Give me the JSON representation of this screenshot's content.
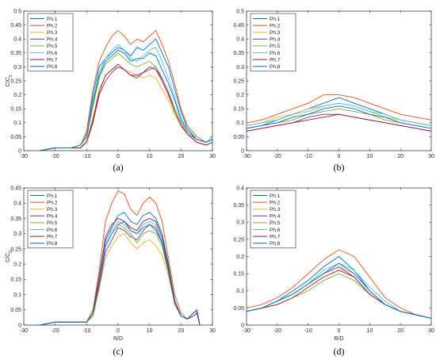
{
  "chart_data": [
    {
      "type": "line",
      "caption": "(a)",
      "xlabel": "",
      "ylabel": "C/C0",
      "xlim": [
        -30,
        30
      ],
      "ylim": [
        0,
        0.5
      ],
      "xticks": [
        -30,
        -20,
        -10,
        0,
        10,
        20,
        30
      ],
      "yticks": [
        0,
        0.05,
        0.1,
        0.15,
        0.2,
        0.25,
        0.3,
        0.35,
        0.4,
        0.45,
        0.5
      ],
      "legend_position": "top-left",
      "grid": false,
      "x": [
        -25,
        -20,
        -15,
        -12,
        -10,
        -8,
        -6,
        -4,
        -2,
        0,
        2,
        4,
        6,
        8,
        10,
        12,
        14,
        16,
        18,
        20,
        22,
        25,
        28,
        30
      ],
      "series": [
        {
          "name": "Ph.1",
          "color": "#0072BD",
          "values": [
            0.0,
            0.01,
            0.01,
            0.02,
            0.06,
            0.2,
            0.3,
            0.33,
            0.35,
            0.37,
            0.36,
            0.34,
            0.37,
            0.36,
            0.38,
            0.4,
            0.35,
            0.3,
            0.22,
            0.14,
            0.08,
            0.04,
            0.03,
            0.05
          ]
        },
        {
          "name": "Ph.2",
          "color": "#D95319",
          "values": [
            0.0,
            0.01,
            0.01,
            0.02,
            0.07,
            0.22,
            0.32,
            0.37,
            0.41,
            0.43,
            0.41,
            0.38,
            0.4,
            0.39,
            0.41,
            0.43,
            0.38,
            0.32,
            0.24,
            0.15,
            0.09,
            0.05,
            0.03,
            0.04
          ]
        },
        {
          "name": "Ph.3",
          "color": "#EDB120",
          "values": [
            0.0,
            0.01,
            0.01,
            0.01,
            0.04,
            0.12,
            0.22,
            0.27,
            0.29,
            0.3,
            0.29,
            0.28,
            0.27,
            0.26,
            0.27,
            0.26,
            0.22,
            0.18,
            0.13,
            0.09,
            0.06,
            0.03,
            0.02,
            0.03
          ]
        },
        {
          "name": "Ph.4",
          "color": "#7E2F8E",
          "values": [
            0.0,
            0.01,
            0.01,
            0.01,
            0.03,
            0.1,
            0.2,
            0.25,
            0.28,
            0.3,
            0.29,
            0.27,
            0.26,
            0.28,
            0.29,
            0.3,
            0.26,
            0.21,
            0.15,
            0.1,
            0.06,
            0.03,
            0.02,
            0.03
          ]
        },
        {
          "name": "Ph.5",
          "color": "#77AC30",
          "values": [
            0.0,
            0.01,
            0.01,
            0.02,
            0.05,
            0.16,
            0.26,
            0.31,
            0.33,
            0.35,
            0.33,
            0.31,
            0.3,
            0.31,
            0.32,
            0.3,
            0.25,
            0.2,
            0.15,
            0.1,
            0.06,
            0.04,
            0.03,
            0.04
          ]
        },
        {
          "name": "Ph.6",
          "color": "#4DBEEE",
          "values": [
            0.0,
            0.01,
            0.01,
            0.02,
            0.06,
            0.18,
            0.28,
            0.33,
            0.36,
            0.38,
            0.36,
            0.33,
            0.32,
            0.34,
            0.36,
            0.37,
            0.32,
            0.26,
            0.19,
            0.12,
            0.07,
            0.04,
            0.03,
            0.05
          ]
        },
        {
          "name": "Ph.7",
          "color": "#A2142F",
          "values": [
            0.0,
            0.01,
            0.01,
            0.01,
            0.03,
            0.11,
            0.21,
            0.27,
            0.29,
            0.31,
            0.29,
            0.27,
            0.27,
            0.28,
            0.3,
            0.29,
            0.25,
            0.2,
            0.14,
            0.09,
            0.06,
            0.03,
            0.02,
            0.03
          ]
        },
        {
          "name": "Ph.8",
          "color": "#0072BD",
          "values": [
            0.0,
            0.01,
            0.01,
            0.02,
            0.05,
            0.17,
            0.27,
            0.32,
            0.34,
            0.36,
            0.35,
            0.32,
            0.33,
            0.33,
            0.35,
            0.34,
            0.29,
            0.24,
            0.18,
            0.11,
            0.07,
            0.04,
            0.03,
            0.04
          ]
        }
      ]
    },
    {
      "type": "line",
      "caption": "(b)",
      "xlabel": "",
      "ylabel": "",
      "xlim": [
        -30,
        30
      ],
      "ylim": [
        0,
        0.5
      ],
      "xticks": [
        -30,
        -20,
        -10,
        0,
        10,
        20,
        30
      ],
      "yticks": [
        0,
        0.05,
        0.1,
        0.15,
        0.2,
        0.25,
        0.3,
        0.35,
        0.4,
        0.45,
        0.5
      ],
      "legend_position": "top-left",
      "grid": false,
      "x": [
        -30,
        -25,
        -20,
        -15,
        -10,
        -5,
        0,
        5,
        10,
        15,
        20,
        25,
        30
      ],
      "series": [
        {
          "name": "Ph.1",
          "color": "#0072BD",
          "values": [
            0.08,
            0.09,
            0.11,
            0.13,
            0.15,
            0.17,
            0.19,
            0.17,
            0.15,
            0.13,
            0.11,
            0.1,
            0.09
          ]
        },
        {
          "name": "Ph.2",
          "color": "#D95319",
          "values": [
            0.1,
            0.11,
            0.13,
            0.15,
            0.17,
            0.2,
            0.2,
            0.19,
            0.17,
            0.15,
            0.13,
            0.12,
            0.11
          ]
        },
        {
          "name": "Ph.3",
          "color": "#EDB120",
          "values": [
            0.09,
            0.1,
            0.12,
            0.13,
            0.15,
            0.16,
            0.17,
            0.16,
            0.14,
            0.12,
            0.11,
            0.1,
            0.09
          ]
        },
        {
          "name": "Ph.4",
          "color": "#7E2F8E",
          "values": [
            0.07,
            0.08,
            0.09,
            0.1,
            0.12,
            0.13,
            0.13,
            0.12,
            0.11,
            0.1,
            0.09,
            0.08,
            0.07
          ]
        },
        {
          "name": "Ph.5",
          "color": "#77AC30",
          "values": [
            0.08,
            0.09,
            0.1,
            0.11,
            0.13,
            0.14,
            0.15,
            0.14,
            0.13,
            0.11,
            0.1,
            0.09,
            0.08
          ]
        },
        {
          "name": "Ph.6",
          "color": "#4DBEEE",
          "values": [
            0.09,
            0.1,
            0.11,
            0.13,
            0.14,
            0.16,
            0.17,
            0.16,
            0.14,
            0.13,
            0.11,
            0.1,
            0.09
          ]
        },
        {
          "name": "Ph.7",
          "color": "#A2142F",
          "values": [
            0.07,
            0.08,
            0.09,
            0.1,
            0.11,
            0.12,
            0.13,
            0.12,
            0.11,
            0.1,
            0.09,
            0.08,
            0.07
          ]
        },
        {
          "name": "Ph.8",
          "color": "#0072BD",
          "values": [
            0.08,
            0.09,
            0.1,
            0.12,
            0.13,
            0.15,
            0.16,
            0.15,
            0.13,
            0.12,
            0.1,
            0.09,
            0.08
          ]
        }
      ]
    },
    {
      "type": "line",
      "caption": "(c)",
      "xlabel": "R/D",
      "ylabel": "C/C0",
      "xlim": [
        -30,
        30
      ],
      "ylim": [
        0,
        0.45
      ],
      "xticks": [
        -30,
        -20,
        -10,
        0,
        10,
        20,
        30
      ],
      "yticks": [
        0,
        0.05,
        0.1,
        0.15,
        0.2,
        0.25,
        0.3,
        0.35,
        0.4,
        0.45
      ],
      "legend_position": "top-left",
      "grid": false,
      "x": [
        -28,
        -25,
        -20,
        -15,
        -10,
        -8,
        -6,
        -4,
        -2,
        0,
        2,
        4,
        6,
        8,
        10,
        12,
        14,
        16,
        18,
        20,
        22,
        24,
        25,
        26
      ],
      "series": [
        {
          "name": "Ph.1",
          "color": "#0072BD",
          "values": [
            0.0,
            0.0,
            0.01,
            0.01,
            0.01,
            0.04,
            0.15,
            0.28,
            0.32,
            0.36,
            0.37,
            0.34,
            0.33,
            0.36,
            0.37,
            0.35,
            0.3,
            0.2,
            0.08,
            0.03,
            0.02,
            0.04,
            0.05,
            0.0
          ]
        },
        {
          "name": "Ph.2",
          "color": "#D95319",
          "values": [
            0.0,
            0.0,
            0.01,
            0.01,
            0.01,
            0.05,
            0.18,
            0.34,
            0.4,
            0.44,
            0.43,
            0.38,
            0.36,
            0.4,
            0.42,
            0.4,
            0.34,
            0.22,
            0.1,
            0.04,
            0.02,
            0.04,
            0.05,
            0.0
          ]
        },
        {
          "name": "Ph.3",
          "color": "#EDB120",
          "values": [
            0.0,
            0.0,
            0.01,
            0.01,
            0.01,
            0.03,
            0.12,
            0.22,
            0.26,
            0.29,
            0.3,
            0.27,
            0.25,
            0.27,
            0.28,
            0.26,
            0.23,
            0.16,
            0.07,
            0.03,
            0.02,
            0.03,
            0.04,
            0.0
          ]
        },
        {
          "name": "Ph.4",
          "color": "#7E2F8E",
          "values": [
            0.0,
            0.0,
            0.01,
            0.01,
            0.01,
            0.03,
            0.13,
            0.24,
            0.28,
            0.32,
            0.31,
            0.29,
            0.28,
            0.31,
            0.33,
            0.32,
            0.27,
            0.18,
            0.07,
            0.03,
            0.02,
            0.03,
            0.04,
            0.0
          ]
        },
        {
          "name": "Ph.5",
          "color": "#77AC30",
          "values": [
            0.0,
            0.0,
            0.01,
            0.01,
            0.01,
            0.03,
            0.14,
            0.26,
            0.3,
            0.33,
            0.32,
            0.3,
            0.27,
            0.3,
            0.31,
            0.3,
            0.26,
            0.17,
            0.07,
            0.03,
            0.02,
            0.03,
            0.04,
            0.0
          ]
        },
        {
          "name": "Ph.6",
          "color": "#4DBEEE",
          "values": [
            0.0,
            0.0,
            0.01,
            0.01,
            0.01,
            0.04,
            0.15,
            0.27,
            0.31,
            0.34,
            0.33,
            0.31,
            0.3,
            0.33,
            0.34,
            0.33,
            0.28,
            0.19,
            0.08,
            0.03,
            0.02,
            0.04,
            0.05,
            0.0
          ]
        },
        {
          "name": "Ph.7",
          "color": "#A2142F",
          "values": [
            0.0,
            0.0,
            0.01,
            0.01,
            0.01,
            0.04,
            0.16,
            0.29,
            0.33,
            0.35,
            0.34,
            0.32,
            0.31,
            0.34,
            0.35,
            0.34,
            0.29,
            0.19,
            0.08,
            0.03,
            0.02,
            0.04,
            0.05,
            0.0
          ]
        },
        {
          "name": "Ph.8",
          "color": "#0072BD",
          "values": [
            0.0,
            0.0,
            0.01,
            0.01,
            0.01,
            0.04,
            0.14,
            0.26,
            0.3,
            0.33,
            0.34,
            0.31,
            0.3,
            0.32,
            0.33,
            0.31,
            0.27,
            0.18,
            0.07,
            0.03,
            0.02,
            0.03,
            0.04,
            0.0
          ]
        }
      ]
    },
    {
      "type": "line",
      "caption": "(d)",
      "xlabel": "R/D",
      "ylabel": "",
      "xlim": [
        -30,
        30
      ],
      "ylim": [
        0,
        0.4
      ],
      "xticks": [
        -30,
        -20,
        -10,
        0,
        10,
        20,
        30
      ],
      "yticks": [
        0,
        0.05,
        0.1,
        0.15,
        0.2,
        0.25,
        0.3,
        0.35,
        0.4
      ],
      "legend_position": "top-left",
      "grid": false,
      "x": [
        -30,
        -25,
        -20,
        -15,
        -10,
        -5,
        0,
        5,
        10,
        15,
        20,
        25,
        30
      ],
      "series": [
        {
          "name": "Ph.1",
          "color": "#0072BD",
          "values": [
            0.04,
            0.05,
            0.07,
            0.1,
            0.13,
            0.17,
            0.2,
            0.16,
            0.1,
            0.06,
            0.04,
            0.03,
            0.02
          ]
        },
        {
          "name": "Ph.2",
          "color": "#D95319",
          "values": [
            0.05,
            0.06,
            0.08,
            0.11,
            0.15,
            0.19,
            0.22,
            0.2,
            0.14,
            0.08,
            0.05,
            0.03,
            0.02
          ]
        },
        {
          "name": "Ph.3",
          "color": "#EDB120",
          "values": [
            0.04,
            0.05,
            0.07,
            0.09,
            0.12,
            0.15,
            0.17,
            0.15,
            0.1,
            0.06,
            0.04,
            0.03,
            0.02
          ]
        },
        {
          "name": "Ph.4",
          "color": "#7E2F8E",
          "values": [
            0.04,
            0.05,
            0.07,
            0.09,
            0.12,
            0.15,
            0.17,
            0.14,
            0.09,
            0.06,
            0.04,
            0.03,
            0.02
          ]
        },
        {
          "name": "Ph.5",
          "color": "#77AC30",
          "values": [
            0.04,
            0.05,
            0.06,
            0.08,
            0.1,
            0.13,
            0.15,
            0.13,
            0.09,
            0.06,
            0.04,
            0.03,
            0.02
          ]
        },
        {
          "name": "Ph.6",
          "color": "#4DBEEE",
          "values": [
            0.04,
            0.05,
            0.07,
            0.09,
            0.12,
            0.16,
            0.18,
            0.16,
            0.11,
            0.07,
            0.04,
            0.03,
            0.02
          ]
        },
        {
          "name": "Ph.7",
          "color": "#A2142F",
          "values": [
            0.04,
            0.05,
            0.06,
            0.08,
            0.11,
            0.14,
            0.16,
            0.14,
            0.09,
            0.06,
            0.04,
            0.03,
            0.02
          ]
        },
        {
          "name": "Ph.8",
          "color": "#0072BD",
          "values": [
            0.04,
            0.05,
            0.07,
            0.09,
            0.12,
            0.15,
            0.18,
            0.15,
            0.1,
            0.06,
            0.04,
            0.03,
            0.02
          ]
        }
      ]
    }
  ]
}
